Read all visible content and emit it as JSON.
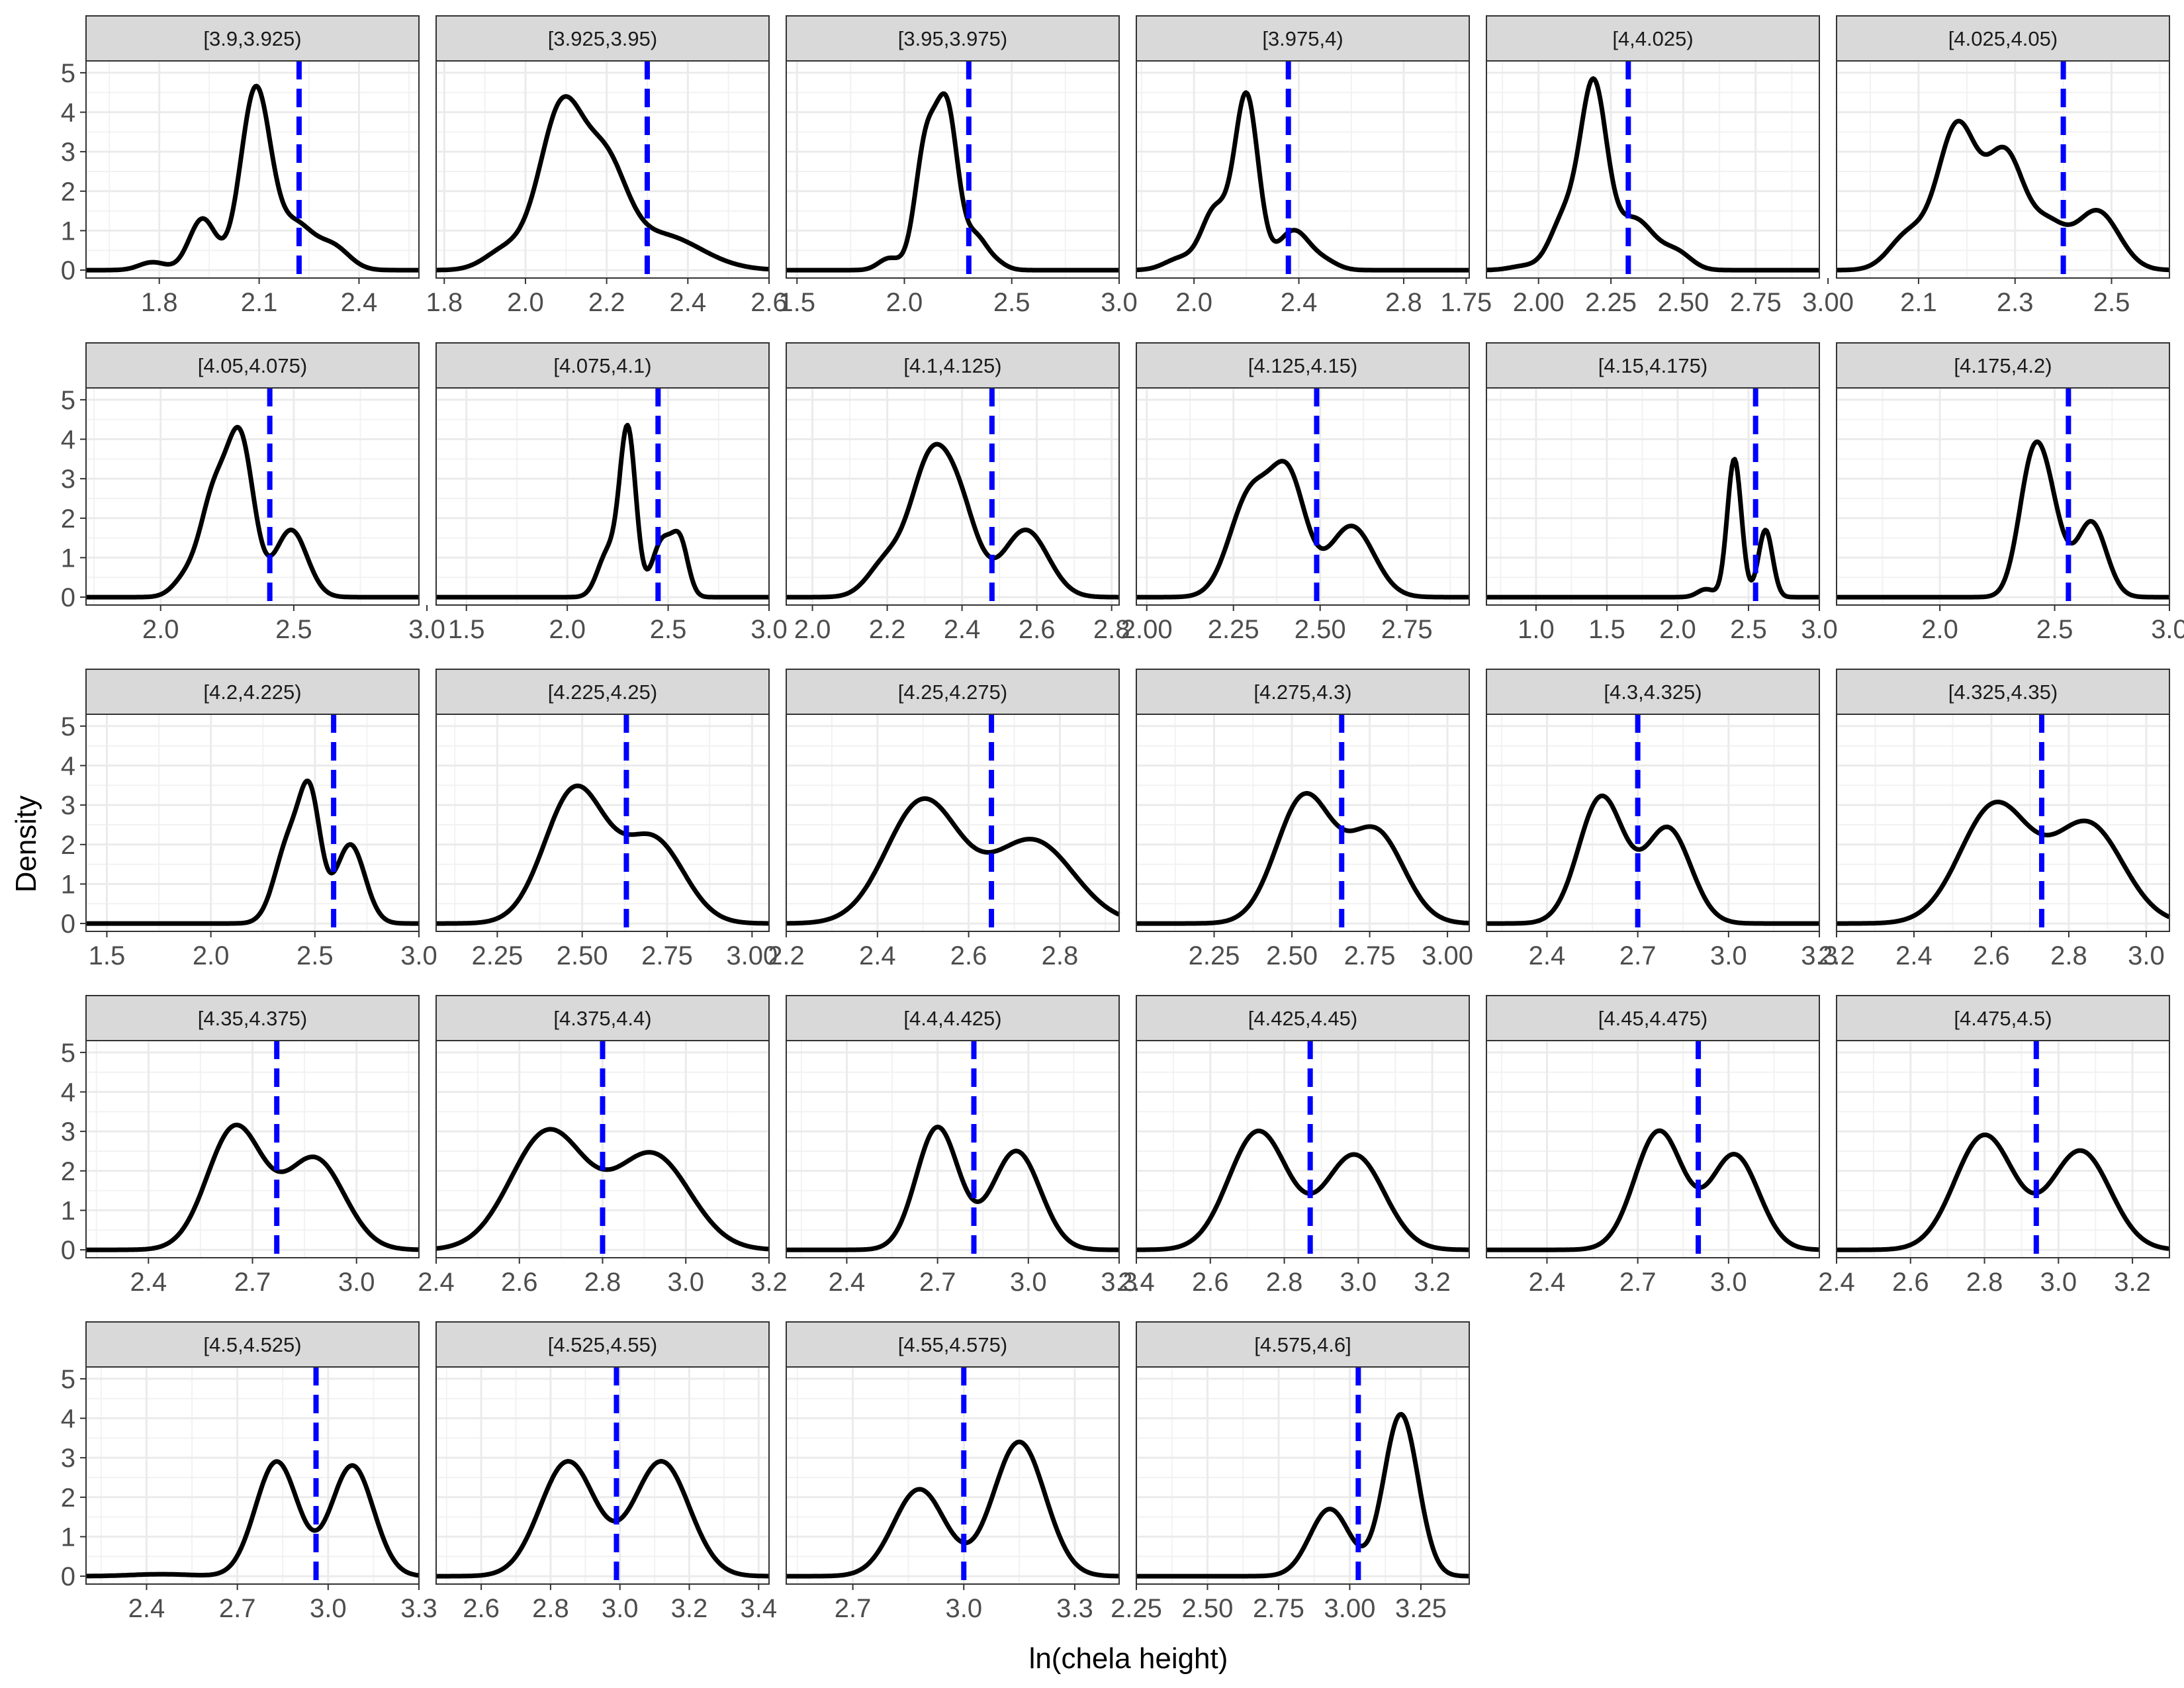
{
  "chart_data": {
    "type": "line",
    "xlabel": "ln(chela height)",
    "ylabel": "Density",
    "y_range": [
      -0.2,
      5.3
    ],
    "y_ticks": [
      0,
      1,
      2,
      3,
      4,
      5
    ],
    "grid": true,
    "curve_color": "#000000",
    "reference_line_color": "#0000ff",
    "reference_line_style": "dashed",
    "panels": [
      {
        "label": "[3.9,3.925)",
        "x_range": [
          1.58,
          2.58
        ],
        "x_ticks": [
          "1.8",
          "2.1",
          "2.4"
        ],
        "x_tick_values": [
          1.8,
          2.1,
          2.4
        ],
        "ref_x": 2.22,
        "peaks": [
          [
            1.78,
            0.2,
            0.04
          ],
          [
            1.93,
            1.3,
            0.04
          ],
          [
            2.09,
            4.6,
            0.045
          ],
          [
            2.21,
            1.1,
            0.05
          ],
          [
            2.32,
            0.6,
            0.05
          ]
        ]
      },
      {
        "label": "[3.925,3.95)",
        "x_range": [
          1.78,
          2.6
        ],
        "x_ticks": [
          "1.8",
          "2.0",
          "2.2",
          "2.4",
          "2.6"
        ],
        "x_tick_values": [
          1.8,
          2.0,
          2.2,
          2.4,
          2.6
        ],
        "ref_x": 2.3,
        "peaks": [
          [
            1.95,
            0.5,
            0.05
          ],
          [
            2.09,
            4.1,
            0.055
          ],
          [
            2.2,
            2.2,
            0.05
          ],
          [
            2.33,
            0.9,
            0.1
          ]
        ]
      },
      {
        "label": "[3.95,3.975)",
        "x_range": [
          1.45,
          3.0
        ],
        "x_ticks": [
          "1.5",
          "2.0",
          "2.5",
          "3.0"
        ],
        "x_tick_values": [
          1.5,
          2.0,
          2.5,
          3.0
        ],
        "ref_x": 2.3,
        "peaks": [
          [
            1.93,
            0.3,
            0.05
          ],
          [
            2.1,
            3.1,
            0.05
          ],
          [
            2.2,
            3.9,
            0.05
          ],
          [
            2.33,
            0.8,
            0.05
          ],
          [
            2.42,
            0.2,
            0.05
          ]
        ]
      },
      {
        "label": "[3.975,4)",
        "x_range": [
          1.78,
          3.05
        ],
        "x_ticks": [
          "2.0",
          "2.4",
          "2.8"
        ],
        "x_tick_values": [
          2.0,
          2.4,
          2.8
        ],
        "ref_x": 2.36,
        "peaks": [
          [
            1.95,
            0.3,
            0.06
          ],
          [
            2.08,
            1.5,
            0.05
          ],
          [
            2.2,
            4.4,
            0.045
          ],
          [
            2.38,
            1.0,
            0.06
          ],
          [
            2.5,
            0.2,
            0.05
          ]
        ]
      },
      {
        "label": "[4,4.025)",
        "x_range": [
          1.82,
          2.97
        ],
        "x_ticks": [
          "1.75",
          "2.00",
          "2.25",
          "2.50",
          "2.75",
          "3.00"
        ],
        "x_tick_values": [
          1.75,
          2.0,
          2.25,
          2.5,
          2.75,
          3.0
        ],
        "ref_x": 2.31,
        "peaks": [
          [
            1.95,
            0.1,
            0.05
          ],
          [
            2.09,
            1.3,
            0.05
          ],
          [
            2.19,
            4.5,
            0.045
          ],
          [
            2.33,
            1.3,
            0.07
          ],
          [
            2.48,
            0.4,
            0.05
          ]
        ]
      },
      {
        "label": "[4.025,4.05)",
        "x_range": [
          1.93,
          2.62
        ],
        "x_ticks": [
          "2.1",
          "2.3",
          "2.5"
        ],
        "x_tick_values": [
          2.1,
          2.3,
          2.5
        ],
        "ref_x": 2.4,
        "peaks": [
          [
            2.08,
            0.9,
            0.04
          ],
          [
            2.18,
            3.6,
            0.04
          ],
          [
            2.28,
            2.9,
            0.04
          ],
          [
            2.37,
            1.0,
            0.035
          ],
          [
            2.47,
            1.5,
            0.045
          ]
        ]
      },
      {
        "label": "[4.05,4.075)",
        "x_range": [
          1.72,
          2.97
        ],
        "x_ticks": [
          "2.0",
          "2.5",
          "3.0"
        ],
        "x_tick_values": [
          2.0,
          2.5,
          3.0
        ],
        "ref_x": 2.41,
        "peaks": [
          [
            2.1,
            0.5,
            0.05
          ],
          [
            2.2,
            2.4,
            0.05
          ],
          [
            2.3,
            3.9,
            0.05
          ],
          [
            2.49,
            1.7,
            0.06
          ]
        ]
      },
      {
        "label": "[4.075,4.1)",
        "x_range": [
          1.35,
          3.0
        ],
        "x_ticks": [
          "1.5",
          "2.0",
          "2.5",
          "3.0"
        ],
        "x_tick_values": [
          1.5,
          2.0,
          2.5,
          3.0
        ],
        "ref_x": 2.45,
        "peaks": [
          [
            2.2,
            1.1,
            0.05
          ],
          [
            2.3,
            4.2,
            0.04
          ],
          [
            2.47,
            1.4,
            0.05
          ],
          [
            2.56,
            1.3,
            0.04
          ]
        ]
      },
      {
        "label": "[4.1,4.125)",
        "x_range": [
          1.93,
          2.82
        ],
        "x_ticks": [
          "2.0",
          "2.2",
          "2.4",
          "2.6",
          "2.8"
        ],
        "x_tick_values": [
          2.0,
          2.2,
          2.4,
          2.6,
          2.8
        ],
        "ref_x": 2.48,
        "peaks": [
          [
            2.2,
            0.9,
            0.05
          ],
          [
            2.31,
            3.0,
            0.05
          ],
          [
            2.39,
            2.2,
            0.05
          ],
          [
            2.57,
            1.7,
            0.06
          ]
        ]
      },
      {
        "label": "[4.125,4.15)",
        "x_range": [
          1.97,
          2.93
        ],
        "x_ticks": [
          "2.00",
          "2.25",
          "2.50",
          "2.75"
        ],
        "x_tick_values": [
          2.0,
          2.25,
          2.5,
          2.75
        ],
        "ref_x": 2.49,
        "peaks": [
          [
            2.3,
            2.6,
            0.06
          ],
          [
            2.41,
            2.8,
            0.05
          ],
          [
            2.59,
            1.8,
            0.065
          ]
        ]
      },
      {
        "label": "[4.15,4.175)",
        "x_range": [
          0.65,
          3.0
        ],
        "x_ticks": [
          "1.0",
          "1.5",
          "2.0",
          "2.5",
          "3.0"
        ],
        "x_tick_values": [
          1.0,
          1.5,
          2.0,
          2.5,
          3.0
        ],
        "ref_x": 2.55,
        "peaks": [
          [
            2.2,
            0.2,
            0.06
          ],
          [
            2.4,
            3.5,
            0.05
          ],
          [
            2.62,
            1.7,
            0.05
          ]
        ]
      },
      {
        "label": "[4.175,4.2)",
        "x_range": [
          1.55,
          3.0
        ],
        "x_ticks": [
          "2.0",
          "2.5",
          "3.0"
        ],
        "x_tick_values": [
          2.0,
          2.5,
          3.0
        ],
        "ref_x": 2.56,
        "peaks": [
          [
            2.4,
            3.0,
            0.06
          ],
          [
            2.48,
            1.8,
            0.06
          ],
          [
            2.66,
            1.9,
            0.065
          ]
        ]
      },
      {
        "label": "[4.2,4.225)",
        "x_range": [
          1.4,
          3.0
        ],
        "x_ticks": [
          "1.5",
          "2.0",
          "2.5",
          "3.0"
        ],
        "x_tick_values": [
          1.5,
          2.0,
          2.5,
          3.0
        ],
        "ref_x": 2.59,
        "peaks": [
          [
            2.38,
            2.1,
            0.07
          ],
          [
            2.48,
            2.7,
            0.05
          ],
          [
            2.67,
            2.0,
            0.07
          ]
        ]
      },
      {
        "label": "[4.225,4.25)",
        "x_range": [
          2.07,
          3.05
        ],
        "x_ticks": [
          "2.25",
          "2.50",
          "2.75",
          "3.00"
        ],
        "x_tick_values": [
          2.25,
          2.5,
          2.75,
          3.0
        ],
        "ref_x": 2.63,
        "peaks": [
          [
            2.48,
            3.4,
            0.09
          ],
          [
            2.71,
            2.1,
            0.09
          ]
        ]
      },
      {
        "label": "[4.25,4.275)",
        "x_range": [
          2.2,
          2.93
        ],
        "x_ticks": [
          "2.2",
          "2.4",
          "2.6",
          "2.8"
        ],
        "x_tick_values": [
          2.2,
          2.4,
          2.6,
          2.8
        ],
        "ref_x": 2.65,
        "peaks": [
          [
            2.5,
            3.1,
            0.08
          ],
          [
            2.74,
            2.1,
            0.09
          ]
        ]
      },
      {
        "label": "[4.275,4.3)",
        "x_range": [
          2.0,
          3.07
        ],
        "x_ticks": [
          "2.25",
          "2.50",
          "2.75",
          "3.00"
        ],
        "x_tick_values": [
          2.25,
          2.5,
          2.75,
          3.0
        ],
        "ref_x": 2.66,
        "peaks": [
          [
            2.54,
            3.2,
            0.09
          ],
          [
            2.77,
            2.3,
            0.09
          ]
        ]
      },
      {
        "label": "[4.3,4.325)",
        "x_range": [
          2.2,
          3.3
        ],
        "x_ticks": [
          "2.4",
          "2.7",
          "3.0",
          "3.3"
        ],
        "x_tick_values": [
          2.4,
          2.7,
          3.0,
          3.3
        ],
        "ref_x": 2.7,
        "peaks": [
          [
            2.58,
            3.2,
            0.075
          ],
          [
            2.8,
            2.4,
            0.075
          ]
        ]
      },
      {
        "label": "[4.325,4.35)",
        "x_range": [
          2.2,
          3.06
        ],
        "x_ticks": [
          "2.2",
          "2.4",
          "2.6",
          "2.8",
          "3.0"
        ],
        "x_tick_values": [
          2.2,
          2.4,
          2.6,
          2.8,
          3.0
        ],
        "ref_x": 2.73,
        "peaks": [
          [
            2.61,
            3.0,
            0.09
          ],
          [
            2.85,
            2.5,
            0.09
          ]
        ]
      },
      {
        "label": "[4.35,4.375)",
        "x_range": [
          2.22,
          3.18
        ],
        "x_ticks": [
          "2.4",
          "2.7",
          "3.0"
        ],
        "x_tick_values": [
          2.4,
          2.7,
          3.0
        ],
        "ref_x": 2.77,
        "peaks": [
          [
            2.65,
            3.1,
            0.08
          ],
          [
            2.88,
            2.3,
            0.085
          ]
        ]
      },
      {
        "label": "[4.375,4.4)",
        "x_range": [
          2.4,
          3.2
        ],
        "x_ticks": [
          "2.4",
          "2.6",
          "2.8",
          "3.0",
          "3.2"
        ],
        "x_tick_values": [
          2.4,
          2.6,
          2.8,
          3.0,
          3.2
        ],
        "ref_x": 2.8,
        "peaks": [
          [
            2.67,
            3.0,
            0.09
          ],
          [
            2.92,
            2.4,
            0.09
          ]
        ]
      },
      {
        "label": "[4.4,4.425)",
        "x_range": [
          2.2,
          3.3
        ],
        "x_ticks": [
          "2.4",
          "2.7",
          "3.0",
          "3.3"
        ],
        "x_tick_values": [
          2.4,
          2.7,
          3.0,
          3.3
        ],
        "ref_x": 2.82,
        "peaks": [
          [
            2.7,
            3.1,
            0.07
          ],
          [
            2.96,
            2.5,
            0.08
          ]
        ]
      },
      {
        "label": "[4.425,4.45)",
        "x_range": [
          2.4,
          3.3
        ],
        "x_ticks": [
          "2.4",
          "2.6",
          "2.8",
          "3.0",
          "3.2"
        ],
        "x_tick_values": [
          2.4,
          2.6,
          2.8,
          3.0,
          3.2
        ],
        "ref_x": 2.87,
        "peaks": [
          [
            2.73,
            3.0,
            0.08
          ],
          [
            2.99,
            2.4,
            0.08
          ]
        ]
      },
      {
        "label": "[4.45,4.475)",
        "x_range": [
          2.2,
          3.3
        ],
        "x_ticks": [
          "2.4",
          "2.7",
          "3.0"
        ],
        "x_tick_values": [
          2.4,
          2.7,
          3.0
        ],
        "ref_x": 2.9,
        "peaks": [
          [
            2.77,
            3.0,
            0.08
          ],
          [
            3.02,
            2.4,
            0.08
          ]
        ]
      },
      {
        "label": "[4.475,4.5)",
        "x_range": [
          2.4,
          3.3
        ],
        "x_ticks": [
          "2.4",
          "2.6",
          "2.8",
          "3.0",
          "3.2"
        ],
        "x_tick_values": [
          2.4,
          2.6,
          2.8,
          3.0,
          3.2
        ],
        "ref_x": 2.94,
        "peaks": [
          [
            2.8,
            2.9,
            0.08
          ],
          [
            3.06,
            2.5,
            0.08
          ]
        ]
      },
      {
        "label": "[4.5,4.525)",
        "x_range": [
          2.2,
          3.3
        ],
        "x_ticks": [
          "2.4",
          "2.7",
          "3.0",
          "3.3"
        ],
        "x_tick_values": [
          2.4,
          2.7,
          3.0,
          3.3
        ],
        "ref_x": 2.96,
        "peaks": [
          [
            2.45,
            0.05,
            0.1
          ],
          [
            2.83,
            2.9,
            0.07
          ],
          [
            3.08,
            2.8,
            0.07
          ]
        ]
      },
      {
        "label": "[4.525,4.55)",
        "x_range": [
          2.47,
          3.43
        ],
        "x_ticks": [
          "2.6",
          "2.8",
          "3.0",
          "3.2",
          "3.4"
        ],
        "x_tick_values": [
          2.6,
          2.8,
          3.0,
          3.2,
          3.4
        ],
        "ref_x": 2.99,
        "peaks": [
          [
            2.85,
            2.9,
            0.08
          ],
          [
            3.12,
            2.9,
            0.08
          ]
        ]
      },
      {
        "label": "[4.55,4.575)",
        "x_range": [
          2.52,
          3.42
        ],
        "x_ticks": [
          "2.7",
          "3.0",
          "3.3"
        ],
        "x_tick_values": [
          2.7,
          3.0,
          3.3
        ],
        "ref_x": 3.0,
        "peaks": [
          [
            2.88,
            2.2,
            0.07
          ],
          [
            3.15,
            3.4,
            0.07
          ]
        ]
      },
      {
        "label": "[4.575,4.6]",
        "x_range": [
          2.25,
          3.42
        ],
        "x_ticks": [
          "2.25",
          "2.50",
          "2.75",
          "3.00",
          "3.25"
        ],
        "x_tick_values": [
          2.25,
          2.5,
          2.75,
          3.0,
          3.25
        ],
        "ref_x": 3.03,
        "peaks": [
          [
            2.93,
            1.7,
            0.07
          ],
          [
            3.18,
            4.1,
            0.06
          ]
        ]
      }
    ]
  }
}
